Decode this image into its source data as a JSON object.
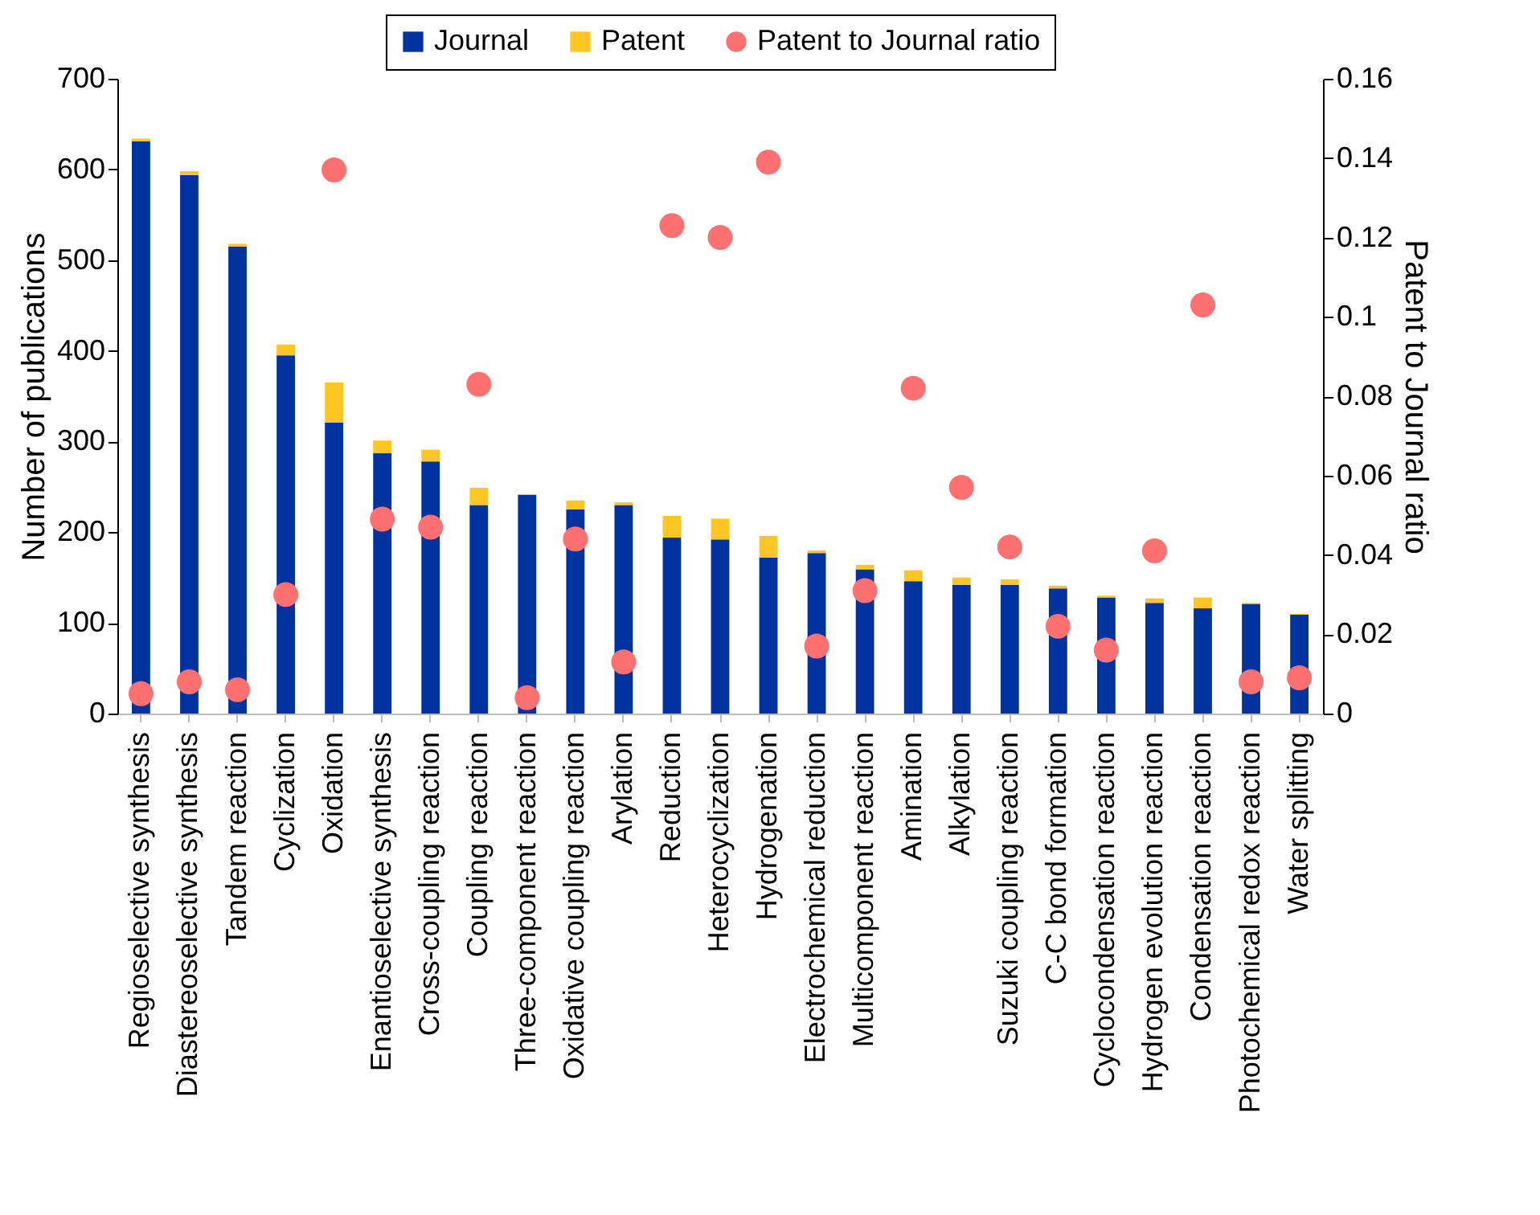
{
  "chart_data": {
    "type": "bar",
    "stacked": true,
    "ylabel": "Number of publications",
    "y2label": "Patent to Journal ratio",
    "categories": [
      "Regioselective synthesis",
      "Diastereoselective synthesis",
      "Tandem reaction",
      "Cyclization",
      "Oxidation",
      "Enantioselective synthesis",
      "Cross-coupling reaction",
      "Coupling reaction",
      "Three-component reaction",
      "Oxidative coupling reaction",
      "Arylation",
      "Reduction",
      "Heterocyclization",
      "Hydrogenation",
      "Electrochemical reduction",
      "Multicomponent reaction",
      "Amination",
      "Alkylation",
      "Suzuki coupling reaction",
      "C-C bond formation",
      "Cyclocondensation reaction",
      "Hydrogen evolution reaction",
      "Condensation reaction",
      "Photochemical redox reaction",
      "Water splitting"
    ],
    "series": [
      {
        "name": "Journal",
        "color": "#0033a0",
        "values": [
          631,
          594,
          515,
          395,
          321,
          287,
          278,
          230,
          241,
          225,
          230,
          194,
          192,
          172,
          177,
          159,
          146,
          142,
          142,
          138,
          128,
          122,
          116,
          121,
          109
        ]
      },
      {
        "name": "Patent",
        "color": "#ffc522",
        "values": [
          3,
          4,
          3,
          12,
          44,
          14,
          13,
          19,
          1,
          10,
          3,
          24,
          23,
          24,
          3,
          5,
          12,
          8,
          6,
          3,
          2,
          5,
          12,
          1,
          1
        ]
      },
      {
        "name": "Patent to Journal ratio",
        "type": "scatter",
        "axis": "y2",
        "color": "#ff7070",
        "values": [
          0.005,
          0.008,
          0.006,
          0.03,
          0.137,
          0.049,
          0.047,
          0.083,
          0.004,
          0.044,
          0.013,
          0.123,
          0.12,
          0.139,
          0.017,
          0.031,
          0.082,
          0.057,
          0.042,
          0.022,
          0.016,
          0.041,
          0.103,
          0.008,
          0.009
        ]
      }
    ],
    "ylim": [
      0,
      700
    ],
    "yticks": [
      0,
      100,
      200,
      300,
      400,
      500,
      600,
      700
    ],
    "y2lim": [
      0,
      0.16
    ],
    "y2ticks": [
      0,
      0.02,
      0.04,
      0.06,
      0.08,
      0.1,
      0.12,
      0.14,
      0.16
    ],
    "legend": "top",
    "grid": false,
    "marker": "circle"
  }
}
